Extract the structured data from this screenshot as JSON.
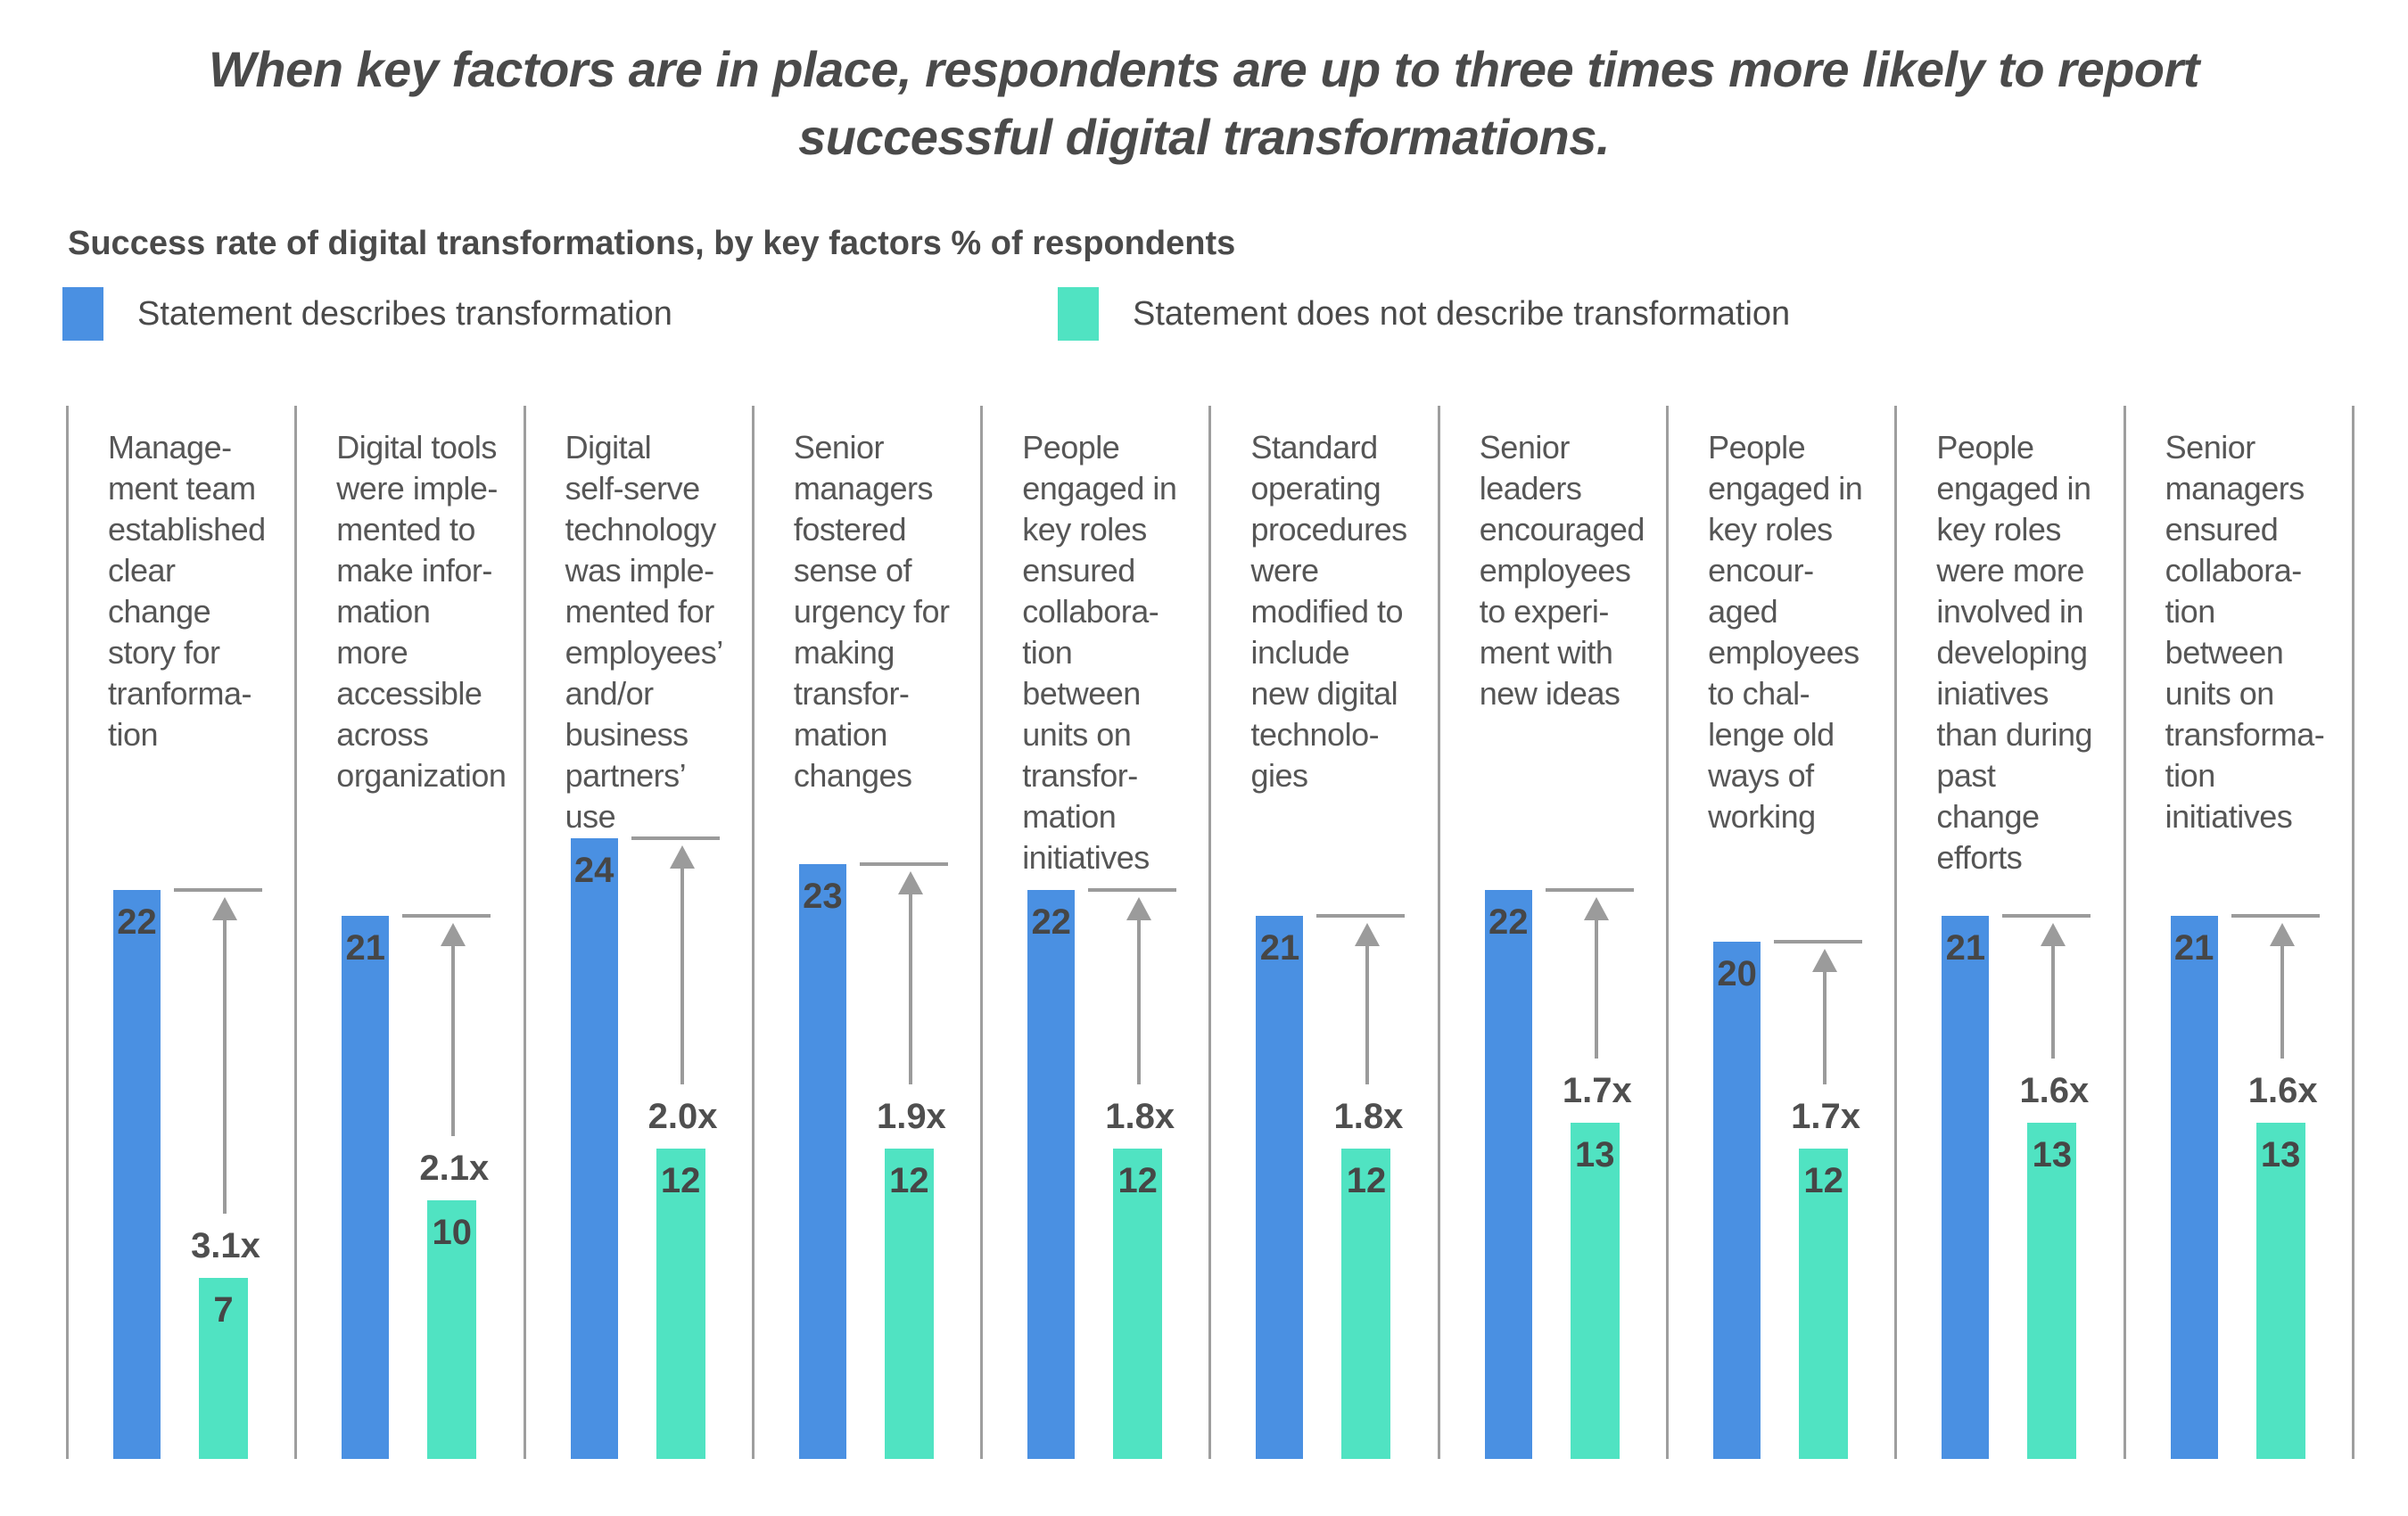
{
  "title": "When key factors are in place, respondents are up to three times more likely to report\nsuccessful digital transformations.",
  "subtitle": "Success rate of digital transformations, by key factors % of respondents",
  "legend": [
    {
      "label": "Statement describes transformation",
      "color": "#4A90E2"
    },
    {
      "label": "Statement does not describe transformation",
      "color": "#50E3C2"
    }
  ],
  "colors": {
    "bar_blue": "#4A90E2",
    "bar_teal": "#50E3C2",
    "arrow_gray": "#9B9B9B",
    "separator_gray": "#9E9E9E",
    "text_dark": "#4A4A4A"
  },
  "chart_data": {
    "type": "bar",
    "title": "When key factors are in place, respondents are up to three times more likely to report successful digital transformations.",
    "subtitle": "Success rate of digital transformations, by key factors % of respondents",
    "unit_label": "% of respondents",
    "legend_position": "top",
    "grid": false,
    "ylim": [
      0,
      25
    ],
    "categories": [
      "Management team established clear change story for tranformation",
      "Digital tools were implemented to make information more accessible across organization",
      "Digital self-serve technology was implemented for employees’ and/or business partners’ use",
      "Senior managers fostered sense of urgency for making transformation changes",
      "People engaged in key roles ensured collaboration between units on transformation initiatives",
      "Standard operating procedures were modified to include new digital technologies",
      "Senior leaders encouraged employees to experiment with new ideas",
      "People engaged in key roles encouraged employees to challenge old ways of working",
      "People engaged in key roles were more involved in developing iniatives than during past change efforts",
      "Senior managers ensured collaboration between units on transformation initiatives"
    ],
    "category_display_lines": [
      [
        "Manage-",
        "ment team",
        "established",
        "clear",
        "change",
        "story for",
        "tranforma-",
        "tion"
      ],
      [
        "Digital tools",
        "were imple-",
        "mented to",
        "make infor-",
        "mation",
        "more",
        "accessible",
        "across",
        "organization"
      ],
      [
        "Digital",
        "self-serve",
        "technology",
        "was imple-",
        "mented for",
        "employees’",
        "and/or",
        "business",
        "partners’",
        "use"
      ],
      [
        "Senior",
        "managers",
        "fostered",
        "sense of",
        "urgency for",
        "making",
        "transfor-",
        "mation",
        "changes"
      ],
      [
        "People",
        "engaged in",
        "key roles",
        "ensured",
        "collabora-",
        "tion",
        "between",
        "units on",
        "transfor-",
        "mation",
        "initiatives"
      ],
      [
        "Standard",
        "operating",
        "procedures",
        "were",
        "modified to",
        "include",
        "new digital",
        "technolo-",
        "gies"
      ],
      [
        "Senior",
        "leaders",
        "encouraged",
        "employees",
        "to experi-",
        "ment with",
        "new ideas"
      ],
      [
        "People",
        "engaged in",
        "key roles",
        "encour-",
        "aged",
        "employees",
        "to chal-",
        "lenge old",
        "ways of",
        "working"
      ],
      [
        "People",
        "engaged in",
        "key roles",
        "were more",
        "involved in",
        "developing",
        "iniatives",
        "than during",
        "past",
        "change",
        "efforts"
      ],
      [
        "Senior",
        "managers",
        "ensured",
        "collabora-",
        "tion",
        "between",
        "units on",
        "transforma-",
        "tion",
        "initiatives"
      ]
    ],
    "series": [
      {
        "name": "Statement describes transformation",
        "color": "#4A90E2",
        "values": [
          22,
          21,
          24,
          23,
          22,
          21,
          22,
          20,
          21,
          21
        ]
      },
      {
        "name": "Statement does not describe transformation",
        "color": "#50E3C2",
        "values": [
          7,
          10,
          12,
          12,
          12,
          12,
          13,
          12,
          13,
          13
        ]
      }
    ],
    "multipliers": [
      "3.1x",
      "2.1x",
      "2.0x",
      "1.9x",
      "1.8x",
      "1.8x",
      "1.7x",
      "1.7x",
      "1.6x",
      "1.6x"
    ]
  }
}
